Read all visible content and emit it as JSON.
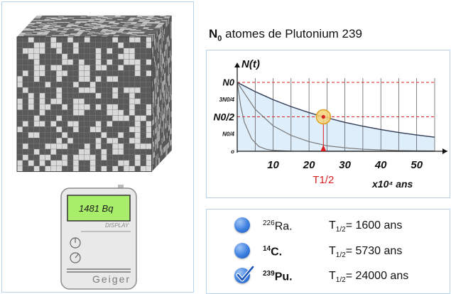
{
  "title": {
    "n0": "N",
    "sub0": "0",
    "rest": " atomes de  Plutonium 239"
  },
  "geiger": {
    "reading": "1481 Bq",
    "display_label": "DISPLAY",
    "brand": "Geiger"
  },
  "chart_data": {
    "type": "line",
    "ylabel": "N(t)",
    "y_tick_labels": [
      "N0",
      "3N0/4",
      "N0/2",
      "N0/4",
      "o"
    ],
    "x_ticks": [
      10,
      20,
      30,
      40,
      50
    ],
    "x_unit": "x10⁴ ans",
    "half_life_label": "T1/2",
    "half_life_value": 24,
    "xlim": [
      0,
      55
    ],
    "ylim": [
      0,
      1
    ],
    "series": [
      {
        "half_life": 24,
        "x": [
          0,
          5,
          10,
          15,
          20,
          24,
          30,
          35,
          40,
          45,
          50,
          55
        ],
        "values": [
          1,
          0.866,
          0.749,
          0.648,
          0.561,
          0.5,
          0.42,
          0.364,
          0.315,
          0.272,
          0.236,
          0.204
        ]
      },
      {
        "half_life": 7,
        "x": [
          0,
          5,
          10,
          15,
          20,
          25,
          30,
          35,
          40,
          45,
          50,
          55
        ],
        "values": [
          1,
          0.61,
          0.37,
          0.23,
          0.14,
          0.08,
          0.05,
          0.03,
          0.02,
          0.01,
          0.007,
          0.004
        ]
      },
      {
        "half_life": 1.6,
        "x": [
          0,
          1,
          2,
          4,
          6,
          8,
          10,
          15,
          20,
          30,
          40,
          55
        ],
        "values": [
          1,
          0.65,
          0.42,
          0.18,
          0.07,
          0.03,
          0.013,
          0.002,
          0,
          0,
          0,
          0
        ]
      }
    ]
  },
  "isotopes": [
    {
      "mass": "226",
      "symbol": "Ra.",
      "half_prefix": "T",
      "half_sub": "1/2",
      "half_value": "= 1600 ans",
      "checked": false
    },
    {
      "mass": "14",
      "symbol": "C.",
      "half_prefix": "T",
      "half_sub": "1/2",
      "half_value": "= 5730 ans",
      "checked": false
    },
    {
      "mass": "239",
      "symbol": "Pu.",
      "half_prefix": "T",
      "half_sub": "1/2",
      "half_value": "= 24000 ans",
      "checked": true
    }
  ],
  "colors": {
    "cube_dark": "#5a5a5a",
    "cube_light": "#d9d9d9",
    "marker": "#d91f1f",
    "panel_border": "#b8d2ea",
    "fill": "#dfeefb"
  }
}
